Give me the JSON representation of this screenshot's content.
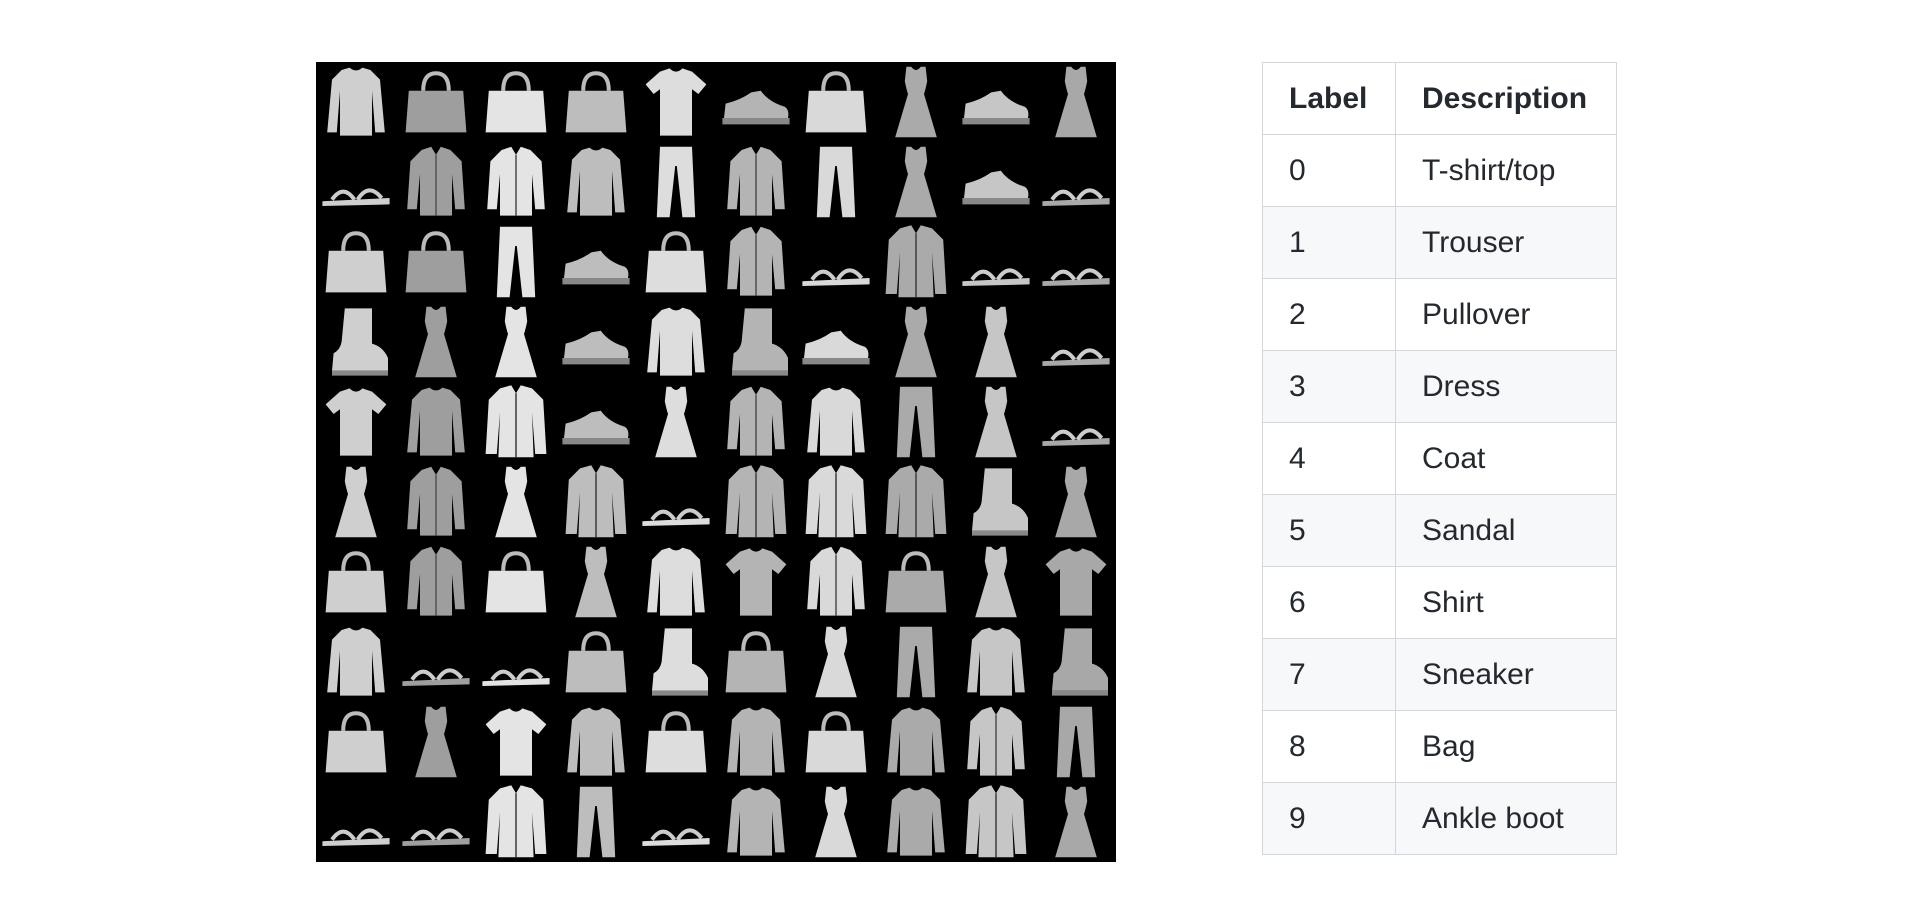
{
  "image_grid": {
    "rows": 10,
    "cols": 10,
    "background": "#000000",
    "items": [
      "pullover",
      "bag",
      "bag",
      "bag",
      "tshirt",
      "sneaker",
      "bag",
      "dress",
      "sneaker",
      "dress",
      "sandal",
      "shirt",
      "shirt",
      "pullover",
      "trouser",
      "shirt",
      "trouser",
      "dress",
      "sneaker",
      "sandal",
      "bag",
      "bag",
      "trouser",
      "sneaker",
      "bag",
      "shirt",
      "sandal",
      "coat",
      "sandal",
      "sandal",
      "boot",
      "dress",
      "dress",
      "sneaker",
      "pullover",
      "boot",
      "sneaker",
      "dress",
      "dress",
      "sandal",
      "tshirt",
      "pullover",
      "coat",
      "sneaker",
      "dress",
      "shirt",
      "pullover",
      "trouser",
      "dress",
      "sandal",
      "dress",
      "shirt",
      "dress",
      "coat",
      "sandal",
      "coat",
      "coat",
      "coat",
      "boot",
      "dress",
      "bag",
      "shirt",
      "bag",
      "dress",
      "pullover",
      "tshirt",
      "shirt",
      "bag",
      "dress",
      "tshirt",
      "pullover",
      "sandal",
      "sandal",
      "bag",
      "boot",
      "bag",
      "dress",
      "trouser",
      "pullover",
      "boot",
      "bag",
      "dress",
      "tshirt",
      "pullover",
      "bag",
      "pullover",
      "bag",
      "pullover",
      "shirt",
      "trouser",
      "sandal",
      "sandal",
      "coat",
      "trouser",
      "sandal",
      "pullover",
      "dress",
      "pullover",
      "coat",
      "dress"
    ]
  },
  "table": {
    "headers": {
      "label": "Label",
      "description": "Description"
    },
    "rows": [
      {
        "label": "0",
        "description": "T-shirt/top"
      },
      {
        "label": "1",
        "description": "Trouser"
      },
      {
        "label": "2",
        "description": "Pullover"
      },
      {
        "label": "3",
        "description": "Dress"
      },
      {
        "label": "4",
        "description": "Coat"
      },
      {
        "label": "5",
        "description": "Sandal"
      },
      {
        "label": "6",
        "description": "Shirt"
      },
      {
        "label": "7",
        "description": "Sneaker"
      },
      {
        "label": "8",
        "description": "Bag"
      },
      {
        "label": "9",
        "description": "Ankle boot"
      }
    ]
  }
}
